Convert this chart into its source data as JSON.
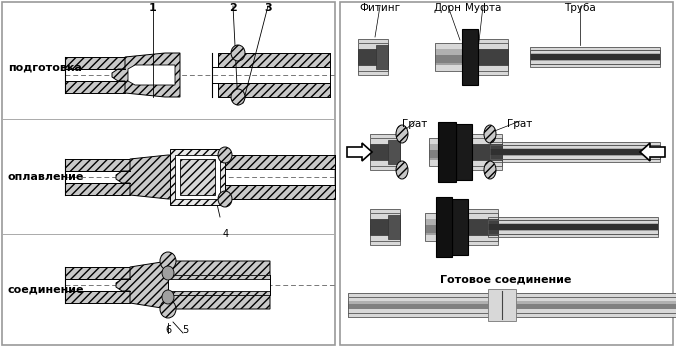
{
  "bg_color": "#ffffff",
  "lc": "#000000",
  "gl": "#c8c8c8",
  "gm": "#a0a0a0",
  "gd": "#606060",
  "left_labels": [
    "подготовка",
    "оплавление",
    "соединение"
  ],
  "top_nums": [
    "1",
    "2",
    "3"
  ],
  "right_top_labels": [
    [
      "Фитинг",
      380
    ],
    [
      "Дорн",
      448
    ],
    [
      "Муфта",
      483
    ],
    [
      "Труба",
      580
    ]
  ],
  "grat_labels": [
    [
      "Грат",
      415
    ],
    [
      "Грат",
      520
    ]
  ],
  "bottom_label": "Готовое соединение",
  "num4": "4",
  "num5": "5",
  "num6": "6"
}
